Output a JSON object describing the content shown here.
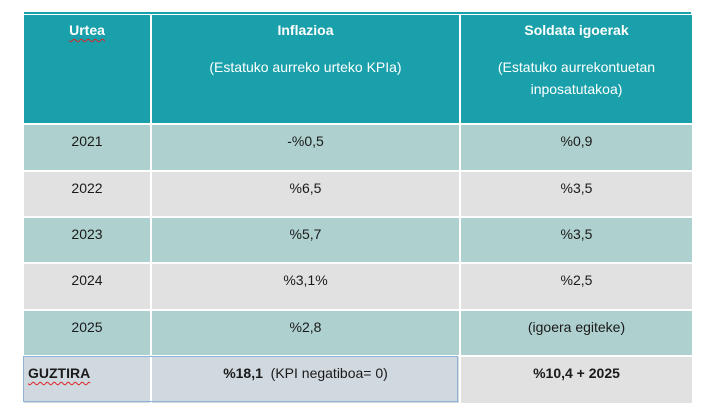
{
  "headers": {
    "year": "Urtea",
    "inflation": "Inflazioa",
    "inflation_sub": "(Estatuko aurreko urteko KPIa)",
    "wages": "Soldata igoerak",
    "wages_sub": "(Estatuko aurrekontuetan inposatutakoa)"
  },
  "rows": [
    {
      "year": "2021",
      "inflation": "-%0,5",
      "wages": "%0,9"
    },
    {
      "year": "2022",
      "inflation": "%6,5",
      "wages": "%3,5"
    },
    {
      "year": "2023",
      "inflation": "%5,7",
      "wages": "%3,5"
    },
    {
      "year": "2024",
      "inflation": "%3,1%",
      "wages": "%2,5"
    },
    {
      "year": "2025",
      "inflation": "%2,8",
      "wages": "(igoera egiteke)"
    }
  ],
  "total": {
    "label": "GUZTIRA",
    "inflation": "%18,1",
    "inflation_note": "(KPI negatiboa= 0)",
    "wages": "%10,4 + 2025"
  }
}
